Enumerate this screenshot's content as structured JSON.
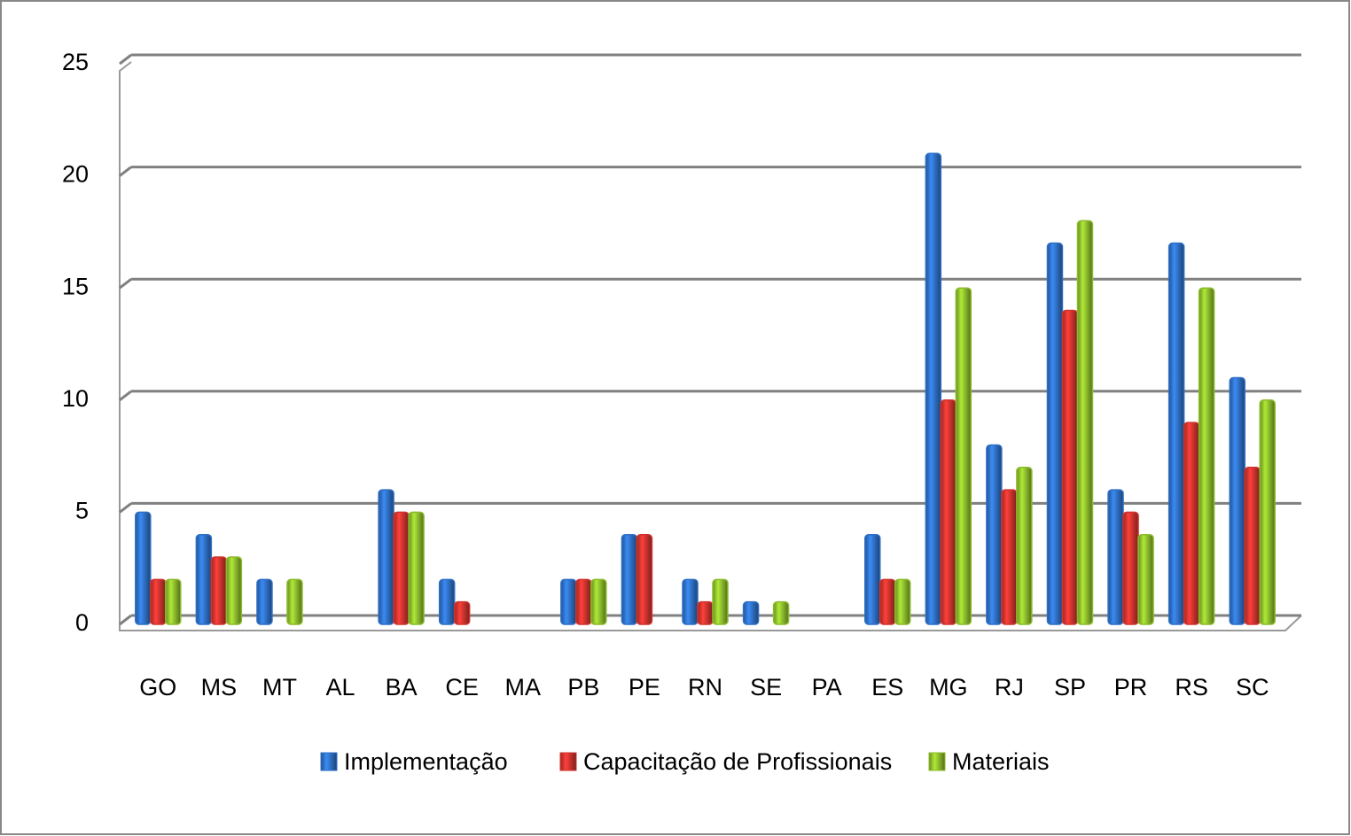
{
  "chart_data": {
    "type": "bar",
    "categories": [
      "GO",
      "MS",
      "MT",
      "AL",
      "BA",
      "CE",
      "MA",
      "PB",
      "PE",
      "RN",
      "SE",
      "PA",
      "ES",
      "MG",
      "RJ",
      "SP",
      "PR",
      "RS",
      "SC"
    ],
    "series": [
      {
        "name": "Implementação",
        "color": "#2e6fc4",
        "values": [
          5,
          4,
          2,
          0,
          6,
          2,
          0,
          2,
          4,
          2,
          1,
          0,
          4,
          21,
          8,
          17,
          6,
          17,
          11
        ]
      },
      {
        "name": "Capacitação de Profissionais",
        "color": "#d0332e",
        "values": [
          2,
          3,
          0,
          0,
          5,
          1,
          0,
          2,
          4,
          1,
          0,
          0,
          2,
          10,
          6,
          14,
          5,
          9,
          7
        ]
      },
      {
        "name": "Materiais",
        "color": "#8cbb2c",
        "values": [
          2,
          3,
          2,
          0,
          5,
          0,
          0,
          2,
          0,
          2,
          1,
          0,
          2,
          15,
          7,
          18,
          4,
          15,
          10
        ]
      }
    ],
    "ylim": [
      0,
      25
    ],
    "yticks": [
      0,
      5,
      10,
      15,
      20,
      25
    ],
    "grid": true,
    "legend": "bottom"
  }
}
